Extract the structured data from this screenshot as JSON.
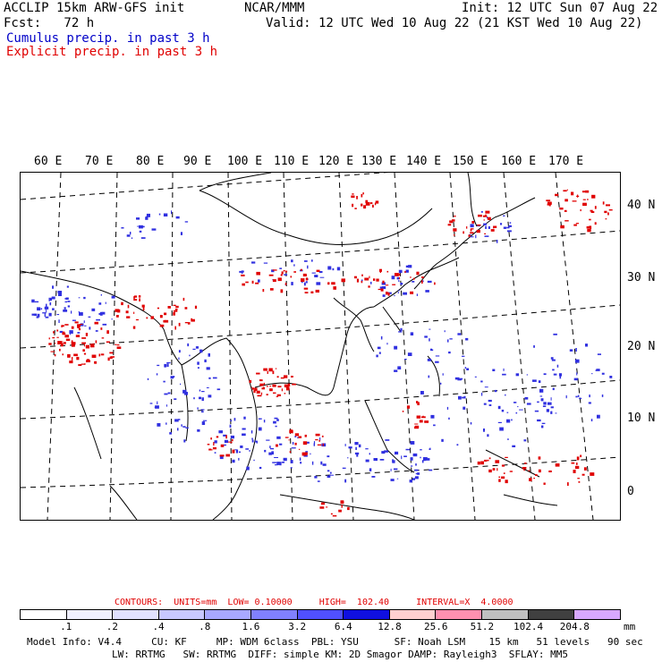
{
  "header": {
    "model": "ACCLIP 15km ARW-GFS init",
    "forecast": "Fcst:   72 h",
    "center": "NCAR/MMM",
    "init": "Init: 12 UTC Sun 07 Aug 22",
    "valid": "Valid: 12 UTC Wed 10 Aug 22 (21 KST Wed 10 Aug 22)"
  },
  "legend": {
    "cumulus": "Cumulus precip. in past 3 h",
    "explicit": "Explicit precip. in past 3 h"
  },
  "map": {
    "lon_labels": [
      "60 E",
      "70 E",
      "80 E",
      "90 E",
      "100 E",
      "110 E",
      "120 E",
      "130 E",
      "140 E",
      "150 E",
      "160 E",
      "170 E"
    ],
    "lat_labels": [
      "40 N",
      "30 N",
      "20 N",
      "10 N",
      "0"
    ],
    "colors": {
      "cumulus": "#3030e0",
      "explicit": "#e00000",
      "land_outline": "#000000",
      "grid": "#000000"
    }
  },
  "contours": {
    "text": "CONTOURS:  UNITS=mm  LOW= 0.10000     HIGH=  102.40     INTERVAL=X  4.0000"
  },
  "colorbar": {
    "ticks": [
      ".1",
      ".2",
      ".4",
      ".8",
      "1.6",
      "3.2",
      "6.4",
      "12.8",
      "25.6",
      "51.2",
      "102.4",
      "204.8"
    ],
    "units": "mm",
    "colors": [
      "#ffffff",
      "#f0f0ff",
      "#e2e2ff",
      "#c8c8ff",
      "#a8a8ff",
      "#8080ff",
      "#5050ff",
      "#1010e0",
      "#ffd0d0",
      "#ff90b0",
      "#c0c0c0",
      "#404040",
      "#d8a8ff"
    ]
  },
  "footer": {
    "line1": "Model Info: V4.4     CU: KF     MP: WDM 6class  PBL: YSU      SF: Noah LSM    15 km   51 levels   90 sec",
    "line2": "LW: RRTMG   SW: RRTMG  DIFF: simple KM: 2D Smagor DAMP: Rayleigh3  SFLAY: MM5"
  }
}
